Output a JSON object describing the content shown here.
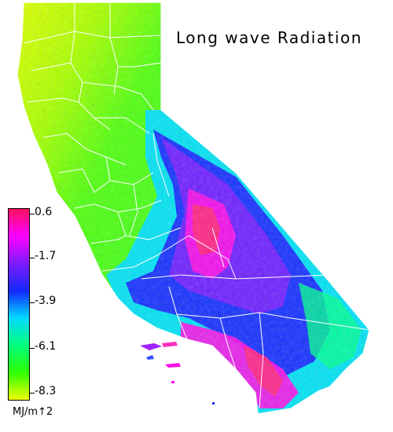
{
  "map": {
    "title": "Long wave Radiation",
    "legend": {
      "ticks": [
        "0.6",
        "-1.7",
        "-3.9",
        "-6.1",
        "-8.3"
      ],
      "units": "MJ/m↑2",
      "colors": [
        "#ff1060",
        "#ff00ff",
        "#7a1cff",
        "#1428ff",
        "#00d8ff",
        "#00ff80",
        "#30ff00",
        "#eeff00"
      ]
    }
  }
}
